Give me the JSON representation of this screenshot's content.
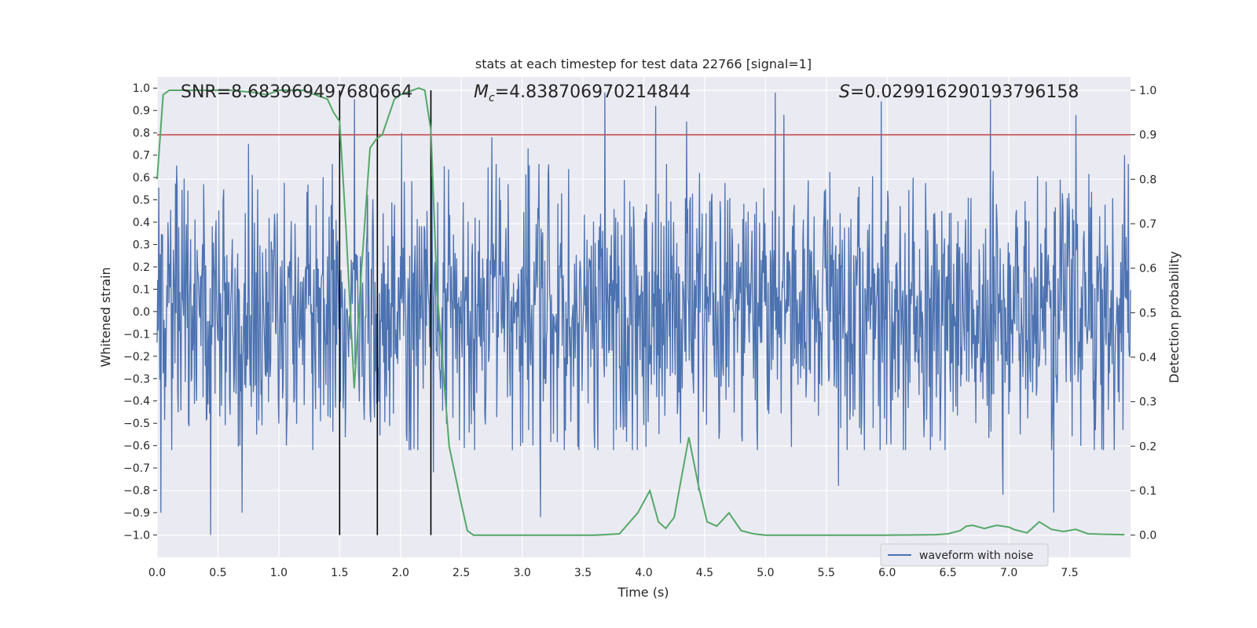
{
  "chart_data": {
    "type": "line",
    "title": "stats at each timestep for test data 22766 [signal=1]",
    "xlabel": "Time (s)",
    "ylabel_left": "Whitened strain",
    "ylabel_right": "Detection probability",
    "xlim": [
      0.0,
      8.0
    ],
    "ylim_left": [
      -1.1,
      1.05
    ],
    "ylim_right": [
      -0.05,
      1.03
    ],
    "x_ticks": [
      "0.0",
      "0.5",
      "1.0",
      "1.5",
      "2.0",
      "2.5",
      "3.0",
      "3.5",
      "4.0",
      "4.5",
      "5.0",
      "5.5",
      "6.0",
      "6.5",
      "7.0",
      "7.5"
    ],
    "y_ticks_left": [
      "1.0",
      "0.9",
      "0.8",
      "0.7",
      "0.6",
      "0.5",
      "0.4",
      "0.3",
      "0.2",
      "0.1",
      "0.0",
      "−0.1",
      "−0.2",
      "−0.3",
      "−0.4",
      "−0.5",
      "−0.6",
      "−0.7",
      "−0.8",
      "−0.9",
      "−1.0"
    ],
    "y_ticks_right": [
      "1.0",
      "0.9",
      "0.8",
      "0.7",
      "0.6",
      "0.5",
      "0.4",
      "0.3",
      "0.2",
      "0.1",
      "0.0"
    ],
    "grid": true,
    "legend": {
      "entries": [
        "waveform with noise"
      ],
      "placement": "lower-right"
    },
    "annotations": {
      "snr": "SNR=8.683969497680664",
      "mc_symbol": "M",
      "mc_sub": "c",
      "mc_value": "=4.838706970214844",
      "s_symbol": "S",
      "s_value": "=0.029916290193796158"
    },
    "threshold_line": {
      "axis": "right",
      "y": 0.9
    },
    "vertical_lines_x": [
      1.5,
      1.81,
      2.25
    ],
    "waveform": {
      "name": "waveform with noise",
      "duration_s": 8.0,
      "envelope_typical": 0.45,
      "spike_peaks": [
        {
          "x": 0.03,
          "y": -0.9
        },
        {
          "x": 0.44,
          "y": -1.0
        },
        {
          "x": 0.7,
          "y": -0.9
        },
        {
          "x": 0.75,
          "y": 0.75
        },
        {
          "x": 1.62,
          "y": 0.95
        },
        {
          "x": 2.01,
          "y": 0.8
        },
        {
          "x": 2.27,
          "y": -0.72
        },
        {
          "x": 2.75,
          "y": 0.78
        },
        {
          "x": 3.05,
          "y": 0.73
        },
        {
          "x": 3.15,
          "y": -0.92
        },
        {
          "x": 3.68,
          "y": 0.98
        },
        {
          "x": 4.1,
          "y": 0.92
        },
        {
          "x": 4.35,
          "y": 0.85
        },
        {
          "x": 4.45,
          "y": -0.8
        },
        {
          "x": 5.08,
          "y": 0.98
        },
        {
          "x": 5.15,
          "y": 0.88
        },
        {
          "x": 5.6,
          "y": -0.78
        },
        {
          "x": 5.95,
          "y": 0.94
        },
        {
          "x": 6.85,
          "y": 0.95
        },
        {
          "x": 6.95,
          "y": -0.82
        },
        {
          "x": 7.37,
          "y": -0.9
        },
        {
          "x": 7.55,
          "y": 0.88
        },
        {
          "x": 7.95,
          "y": 0.7
        }
      ]
    },
    "detection_probability": {
      "name": "Detection probability",
      "x": [
        0.0,
        0.05,
        0.1,
        0.2,
        0.4,
        0.6,
        0.8,
        0.9,
        1.0,
        1.2,
        1.3,
        1.4,
        1.45,
        1.5,
        1.55,
        1.62,
        1.68,
        1.75,
        1.8,
        1.85,
        1.95,
        2.0,
        2.05,
        2.15,
        2.2,
        2.25,
        2.3,
        2.4,
        2.5,
        2.55,
        2.6,
        2.8,
        3.0,
        3.2,
        3.4,
        3.6,
        3.8,
        3.95,
        4.05,
        4.12,
        4.18,
        4.25,
        4.37,
        4.45,
        4.52,
        4.6,
        4.7,
        4.8,
        4.9,
        5.0,
        5.5,
        6.0,
        6.4,
        6.5,
        6.6,
        6.65,
        6.7,
        6.8,
        6.9,
        7.0,
        7.05,
        7.15,
        7.25,
        7.35,
        7.45,
        7.55,
        7.65,
        7.75,
        7.95
      ],
      "y": [
        0.8,
        0.99,
        1.0,
        1.0,
        1.0,
        1.0,
        0.995,
        0.99,
        1.0,
        1.0,
        0.99,
        0.98,
        0.95,
        0.93,
        0.7,
        0.33,
        0.6,
        0.87,
        0.89,
        0.9,
        0.98,
        0.99,
        0.995,
        1.005,
        1.0,
        0.91,
        0.55,
        0.2,
        0.07,
        0.01,
        0.0,
        0.0,
        0.0,
        0.0,
        0.0,
        0.0,
        0.003,
        0.05,
        0.1,
        0.03,
        0.015,
        0.04,
        0.22,
        0.11,
        0.03,
        0.02,
        0.05,
        0.01,
        0.003,
        0.0,
        0.0,
        0.0,
        0.001,
        0.003,
        0.01,
        0.02,
        0.022,
        0.015,
        0.022,
        0.018,
        0.012,
        0.005,
        0.03,
        0.013,
        0.008,
        0.013,
        0.003,
        0.002,
        0.001
      ]
    },
    "colors": {
      "background": "#eaeaf2",
      "grid": "#ffffff",
      "waveform": "#4c72b0",
      "probability": "#55a868",
      "threshold": "#c44e52",
      "vlines": "#000000",
      "text": "#262626"
    }
  }
}
